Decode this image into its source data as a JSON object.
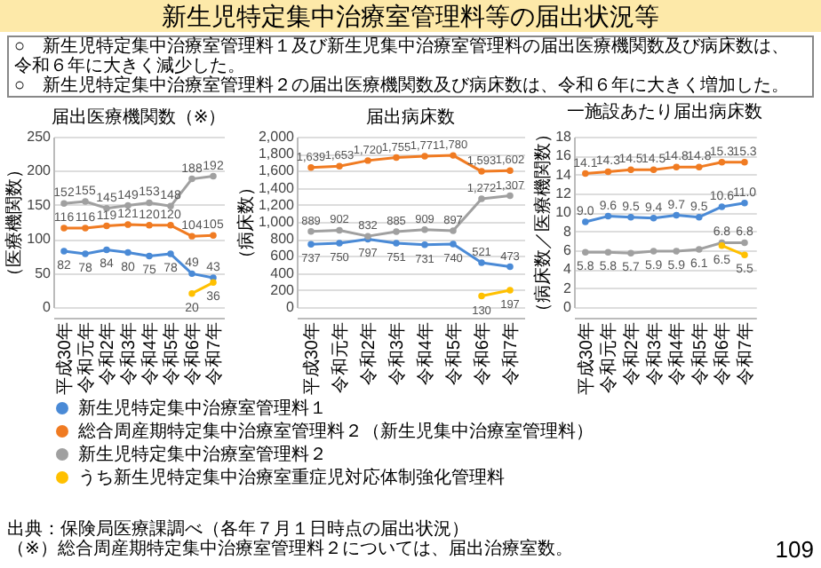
{
  "chart_data": [
    {
      "type": "other",
      "title": "新生児特定集中治療室管理料等の届出状況等",
      "annotations": [
        "○　新生児特定集中治療室管理料１及び新生児集中治療室管理料の届出医療機関数及び病床数は、令和６年に大きく減少した。",
        "○　新生児特定集中治療室管理料２の届出医療機関数及び病床数は、令和６年に大きく増加した。"
      ]
    },
    {
      "type": "line",
      "title": "届出医療機関数（※）",
      "ylabel": "（医療機関数）",
      "categories": [
        "平成30年",
        "令和元年",
        "令和2年",
        "令和3年",
        "令和4年",
        "令和5年",
        "令和6年",
        "令和7年"
      ],
      "ylim": [
        0,
        250
      ],
      "yticks": [
        0,
        50,
        100,
        150,
        200,
        250
      ],
      "grid": "y",
      "legend": "bottom",
      "marker": "circle",
      "series": [
        {
          "name": "新生児特定集中治療室管理料１",
          "color": "#4a8ad6",
          "values": [
            82,
            78,
            84,
            80,
            75,
            78,
            49,
            43
          ],
          "value_labels": [
            "82",
            "78",
            "84",
            "80",
            "75",
            "78",
            "49",
            "43"
          ]
        },
        {
          "name": "総合周産期特定集中治療室管理料２（新生児集中治療室管理料）",
          "color": "#f07b22",
          "values": [
            116,
            116,
            119,
            121,
            120,
            120,
            104,
            105
          ],
          "value_labels": [
            "116",
            "116",
            "119",
            "121",
            "120",
            "120",
            "104",
            "105"
          ]
        },
        {
          "name": "新生児特定集中治療室管理料２",
          "color": "#a0a0a0",
          "values": [
            152,
            155,
            145,
            149,
            153,
            148,
            188,
            192
          ],
          "value_labels": [
            "152",
            "155",
            "145",
            "149",
            "153",
            "148",
            "188",
            "192"
          ]
        },
        {
          "name": "うち新生児特定集中治療室重症児対応体制強化管理料",
          "color": "#ffc000",
          "values": [
            null,
            null,
            null,
            null,
            null,
            null,
            20,
            36
          ],
          "value_labels": [
            null,
            null,
            null,
            null,
            null,
            null,
            "20",
            "36"
          ]
        }
      ]
    },
    {
      "type": "line",
      "title": "届出病床数",
      "ylabel": "（病床数）",
      "categories": [
        "平成30年",
        "令和元年",
        "令和2年",
        "令和3年",
        "令和4年",
        "令和5年",
        "令和6年",
        "令和7年"
      ],
      "ylim": [
        0,
        2000
      ],
      "yticks": [
        0,
        200,
        400,
        600,
        800,
        {
          "value": 1000,
          "label": "1,000"
        },
        {
          "value": 1200,
          "label": "1,200"
        },
        {
          "value": 1400,
          "label": "1,400"
        },
        {
          "value": 1600,
          "label": "1,600"
        },
        {
          "value": 1800,
          "label": "1,800"
        },
        {
          "value": 2000,
          "label": "2,000"
        }
      ],
      "grid": "y",
      "legend": "bottom",
      "marker": "circle",
      "series": [
        {
          "name": "新生児特定集中治療室管理料１",
          "color": "#4a8ad6",
          "values": [
            737,
            750,
            797,
            751,
            731,
            740,
            521,
            473
          ],
          "value_labels": [
            "737",
            "750",
            "797",
            "751",
            "731",
            "740",
            "521",
            "473"
          ]
        },
        {
          "name": "総合周産期特定集中治療室管理料２（新生児集中治療室管理料）",
          "color": "#f07b22",
          "values": [
            1639,
            1653,
            1720,
            1755,
            1771,
            1780,
            1593,
            1602
          ],
          "value_labels": [
            "1,639",
            "1,653",
            "1,720",
            "1,755",
            "1,771",
            "1,780",
            "1,593",
            "1,602"
          ]
        },
        {
          "name": "新生児特定集中治療室管理料２",
          "color": "#a0a0a0",
          "values": [
            889,
            902,
            832,
            885,
            909,
            897,
            1272,
            1307
          ],
          "value_labels": [
            "889",
            "902",
            "832",
            "885",
            "909",
            "897",
            "1,272",
            "1,307"
          ]
        },
        {
          "name": "うち新生児特定集中治療室重症児対応体制強化管理料",
          "color": "#ffc000",
          "values": [
            null,
            null,
            null,
            null,
            null,
            null,
            130,
            197
          ],
          "value_labels": [
            null,
            null,
            null,
            null,
            null,
            null,
            "130",
            "197"
          ]
        }
      ]
    },
    {
      "type": "line",
      "title": "一施設あたり届出病床数",
      "ylabel": "（病床数／医療機関数）",
      "categories": [
        "平成30年",
        "令和元年",
        "令和2年",
        "令和3年",
        "令和4年",
        "令和5年",
        "令和6年",
        "令和7年"
      ],
      "ylim": [
        0,
        18
      ],
      "yticks": [
        0,
        2,
        4,
        6,
        8,
        10,
        12,
        14,
        16,
        18
      ],
      "grid": "y",
      "legend": "bottom",
      "marker": "circle",
      "series": [
        {
          "name": "新生児特定集中治療室管理料１",
          "color": "#4a8ad6",
          "values": [
            9.0,
            9.6,
            9.5,
            9.4,
            9.7,
            9.5,
            10.6,
            11.0
          ],
          "value_labels": [
            "9.0",
            "9.6",
            "9.5",
            "9.4",
            "9.7",
            "9.5",
            "10.6",
            "11.0"
          ]
        },
        {
          "name": "総合周産期特定集中治療室管理料２（新生児集中治療室管理料）",
          "color": "#f07b22",
          "values": [
            14.1,
            14.3,
            14.5,
            14.5,
            14.8,
            14.8,
            15.3,
            15.3
          ],
          "value_labels": [
            "14.1",
            "14.3",
            "14.5",
            "14.5",
            "14.8",
            "14.8",
            "15.3",
            "15.3"
          ]
        },
        {
          "name": "新生児特定集中治療室管理料２",
          "color": "#a0a0a0",
          "values": [
            5.8,
            5.8,
            5.7,
            5.9,
            5.9,
            6.1,
            6.8,
            6.8
          ],
          "value_labels": [
            "5.8",
            "5.8",
            "5.7",
            "5.9",
            "5.9",
            "6.1",
            "6.8",
            "6.8"
          ]
        },
        {
          "name": "うち新生児特定集中治療室重症児対応体制強化管理料",
          "color": "#ffc000",
          "values": [
            null,
            null,
            null,
            null,
            null,
            null,
            6.5,
            5.5
          ],
          "value_labels": [
            null,
            null,
            null,
            null,
            null,
            null,
            "6.5",
            "5.5"
          ]
        }
      ]
    },
    {
      "type": "other",
      "annotations": [
        "出典：保険局医療課調べ（各年７月１日時点の届出状況）",
        "（※）総合周産期特定集中治療室管理料２については、届出治療室数。",
        "109"
      ]
    }
  ]
}
